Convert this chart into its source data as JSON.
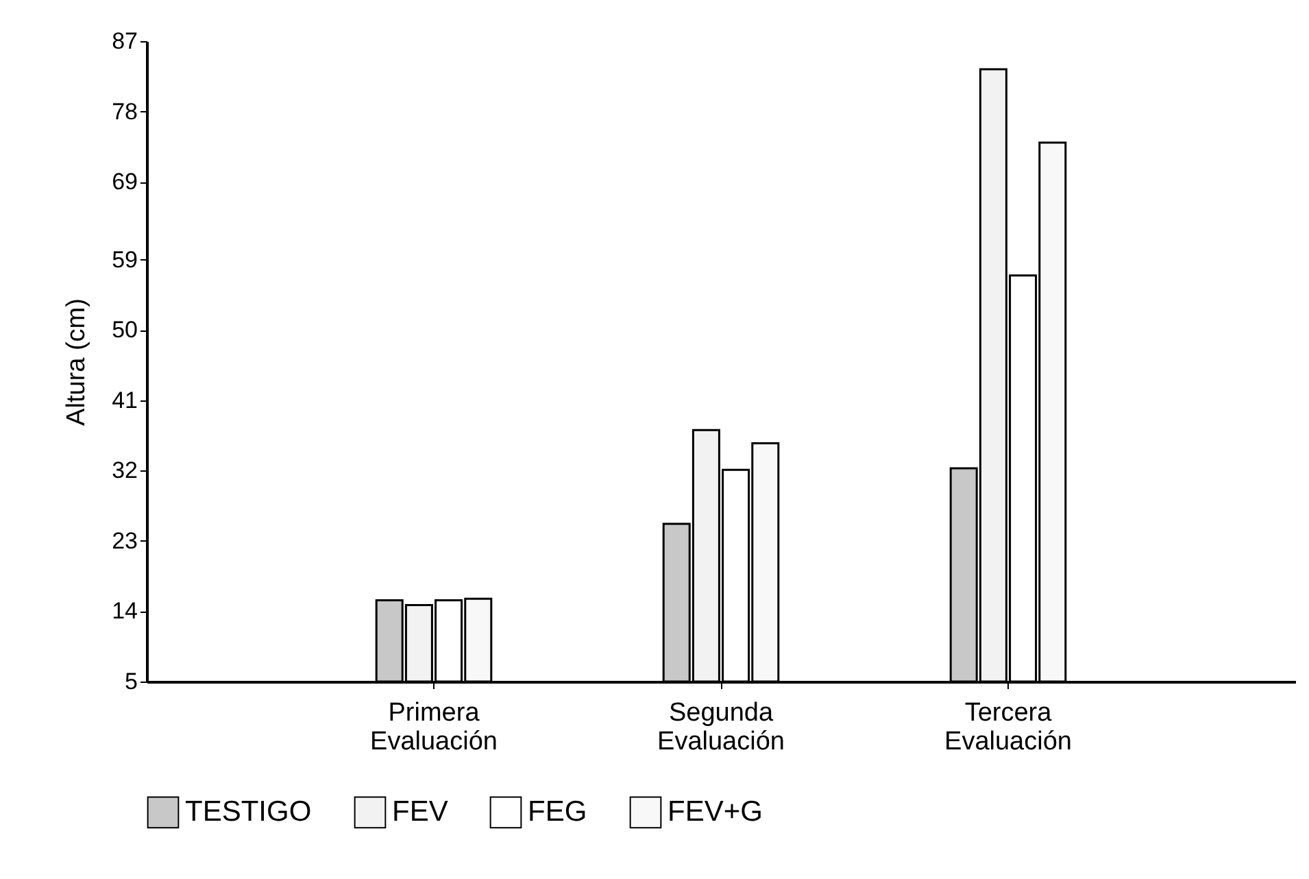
{
  "chart_data": {
    "type": "bar",
    "ylabel": "Altura (cm)",
    "categories": [
      "Primera Evaluación",
      "Segunda Evaluación",
      "Tercera Evaluación"
    ],
    "series": [
      {
        "name": "TESTIGO",
        "color": "#c8c8c8",
        "values": [
          15.4,
          25.2,
          32.3
        ]
      },
      {
        "name": "FEV",
        "color": "#f2f2f2",
        "values": [
          14.8,
          37.2,
          83.4
        ]
      },
      {
        "name": "FEG",
        "color": "#ffffff",
        "values": [
          15.4,
          32.1,
          57.0
        ]
      },
      {
        "name": "FEV+G",
        "color": "#f8f8f8",
        "values": [
          15.6,
          35.5,
          74.0
        ]
      }
    ],
    "ylim": [
      5,
      87
    ],
    "yticks": [
      5,
      14,
      23,
      32,
      41,
      50,
      59,
      69,
      78,
      87
    ],
    "legend": "bottom"
  }
}
